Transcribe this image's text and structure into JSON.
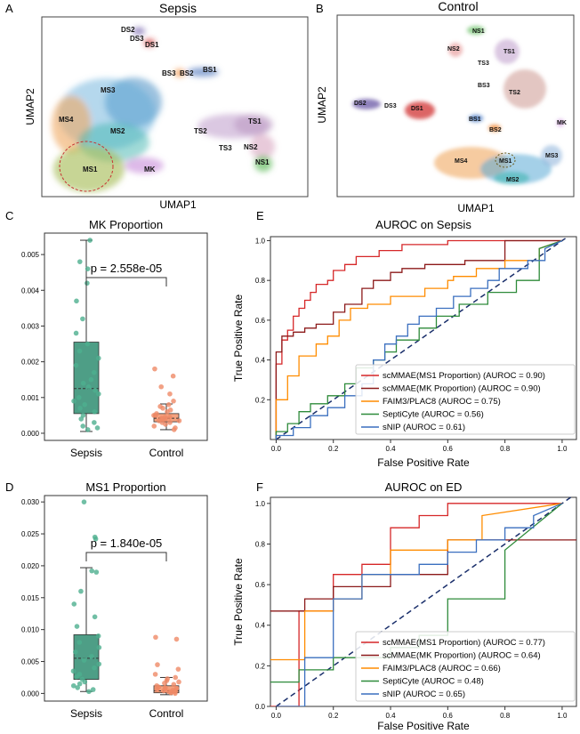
{
  "panels": {
    "A": {
      "letter": "A",
      "title": "Sepsis",
      "xlabel": "UMAP1",
      "ylabel": "UMAP2",
      "clusters": [
        "DS2",
        "DS3",
        "DS1",
        "BS3",
        "BS2",
        "BS1",
        "MS3",
        "MS4",
        "MS2",
        "MS1",
        "MK",
        "TS1",
        "TS2",
        "TS3",
        "NS2",
        "NS1"
      ]
    },
    "B": {
      "letter": "B",
      "title": "Control",
      "xlabel": "UMAP1",
      "ylabel": "UMAP2",
      "clusters": [
        "NS1",
        "NS2",
        "TS1",
        "TS3",
        "BS3",
        "TS2",
        "DS2",
        "DS3",
        "DS1",
        "BS1",
        "BS2",
        "MK",
        "MS4",
        "MS1",
        "MS3",
        "MS2"
      ]
    }
  },
  "colors": {
    "sepsis": "#4daf8e",
    "control": "#ef8a67",
    "box_sepsis": "#4e9e86",
    "box_control": "#f4a27f"
  },
  "chart_data": [
    {
      "id": "C",
      "letter": "C",
      "type": "box",
      "title": "MK Proportion",
      "categories": [
        "Sepsis",
        "Control"
      ],
      "ylim": [
        -0.0002,
        0.0056
      ],
      "yticks": [
        0.0,
        0.001,
        0.002,
        0.003,
        0.004,
        0.005
      ],
      "ytick_labels": [
        "0.000",
        "0.001",
        "0.002",
        "0.003",
        "0.004",
        "0.005"
      ],
      "annotation": "p = 2.558e-05",
      "boxes": [
        {
          "name": "Sepsis",
          "whislo": 5e-05,
          "q1": 0.00055,
          "med": 0.00125,
          "q3": 0.00255,
          "whishi": 0.0054,
          "points": [
            0.0001,
            0.00015,
            0.0002,
            0.0003,
            0.0004,
            0.0005,
            0.0006,
            0.0007,
            0.0008,
            0.0009,
            0.001,
            0.0011,
            0.0012,
            0.0013,
            0.0014,
            0.0015,
            0.0017,
            0.0019,
            0.0021,
            0.0023,
            0.0025,
            0.0028,
            0.0032,
            0.0037,
            0.0042,
            0.0046,
            0.0048,
            0.0054
          ]
        },
        {
          "name": "Control",
          "whislo": 0.0001,
          "q1": 0.00032,
          "med": 0.00042,
          "q3": 0.00055,
          "whishi": 0.00082,
          "points": [
            0.0001,
            0.00015,
            0.0002,
            0.00025,
            0.0003,
            0.0003,
            0.00035,
            0.00035,
            0.0004,
            0.0004,
            0.00042,
            0.00045,
            0.00045,
            0.0005,
            0.0005,
            0.00055,
            0.0006,
            0.00065,
            0.0007,
            0.00075,
            0.0008,
            0.0009,
            0.0011,
            0.0013,
            0.0016,
            0.0018
          ]
        }
      ]
    },
    {
      "id": "D",
      "letter": "D",
      "type": "box",
      "title": "MS1 Proportion",
      "categories": [
        "Sepsis",
        "Control"
      ],
      "ylim": [
        -0.0012,
        0.031
      ],
      "yticks": [
        0.0,
        0.005,
        0.01,
        0.015,
        0.02,
        0.025,
        0.03
      ],
      "ytick_labels": [
        "0.000",
        "0.005",
        "0.010",
        "0.015",
        "0.020",
        "0.025",
        "0.030"
      ],
      "annotation": "p = 1.840e-05",
      "boxes": [
        {
          "name": "Sepsis",
          "whislo": 0.0003,
          "q1": 0.0022,
          "med": 0.0055,
          "q3": 0.0092,
          "whishi": 0.0197,
          "points": [
            0.0003,
            0.0006,
            0.0009,
            0.0012,
            0.0015,
            0.0018,
            0.0022,
            0.0026,
            0.003,
            0.0035,
            0.004,
            0.0046,
            0.0052,
            0.0058,
            0.0065,
            0.0072,
            0.008,
            0.009,
            0.0105,
            0.012,
            0.014,
            0.016,
            0.019,
            0.0192,
            0.0242,
            0.0245,
            0.03
          ]
        },
        {
          "name": "Control",
          "whislo": -0.0002,
          "q1": 0.0001,
          "med": 0.0004,
          "q3": 0.0012,
          "whishi": 0.0025,
          "points": [
            0.0,
            0.0001,
            0.0002,
            0.0002,
            0.0003,
            0.0004,
            0.0005,
            0.0005,
            0.0006,
            0.0007,
            0.0008,
            0.0009,
            0.001,
            0.0012,
            0.0014,
            0.0016,
            0.0018,
            0.002,
            0.0023,
            0.0025,
            0.003,
            0.0038,
            0.0045,
            0.0085,
            0.0088
          ]
        }
      ]
    },
    {
      "id": "E",
      "letter": "E",
      "type": "line",
      "title": "AUROC on Sepsis",
      "xlabel": "False Positive Rate",
      "ylabel": "True Positive Rate",
      "xlim": [
        -0.02,
        1.05
      ],
      "ylim": [
        0.0,
        1.02
      ],
      "xticks": [
        0.0,
        0.2,
        0.4,
        0.6,
        0.8,
        1.0
      ],
      "xtick_labels": [
        "0.0",
        "0.2",
        "0.4",
        "0.6",
        "0.8",
        "1.0"
      ],
      "yticks": [
        0.2,
        0.4,
        0.6,
        0.8,
        1.0
      ],
      "ytick_labels": [
        "0.2",
        "0.4",
        "0.6",
        "0.8",
        "1.0"
      ],
      "series": [
        {
          "name": "scMMAE(MS1 Proportion) (AUROC = 0.90)",
          "color": "#d62728",
          "x": [
            0,
            0,
            0.02,
            0.02,
            0.04,
            0.04,
            0.06,
            0.06,
            0.08,
            0.08,
            0.1,
            0.1,
            0.12,
            0.12,
            0.14,
            0.14,
            0.18,
            0.18,
            0.2,
            0.2,
            0.24,
            0.24,
            0.28,
            0.28,
            0.36,
            0.36,
            0.44,
            0.44,
            0.6,
            0.6,
            1.0
          ],
          "y": [
            0,
            0.38,
            0.38,
            0.5,
            0.5,
            0.55,
            0.55,
            0.62,
            0.62,
            0.66,
            0.66,
            0.7,
            0.7,
            0.74,
            0.74,
            0.78,
            0.78,
            0.8,
            0.8,
            0.85,
            0.85,
            0.88,
            0.88,
            0.92,
            0.92,
            0.95,
            0.95,
            0.98,
            0.98,
            1.0,
            1.0
          ]
        },
        {
          "name": "scMMAE(MK Proportion) (AUROC = 0.90)",
          "color": "#8c1a1a",
          "x": [
            0,
            0,
            0.02,
            0.02,
            0.06,
            0.06,
            0.1,
            0.1,
            0.14,
            0.14,
            0.2,
            0.2,
            0.24,
            0.24,
            0.3,
            0.3,
            0.34,
            0.34,
            0.4,
            0.4,
            0.44,
            0.44,
            0.52,
            0.52,
            0.66,
            0.66,
            0.8,
            0.8,
            1.0
          ],
          "y": [
            0,
            0.44,
            0.44,
            0.52,
            0.52,
            0.54,
            0.54,
            0.56,
            0.56,
            0.58,
            0.58,
            0.64,
            0.64,
            0.68,
            0.68,
            0.76,
            0.76,
            0.8,
            0.8,
            0.84,
            0.84,
            0.86,
            0.86,
            0.88,
            0.88,
            0.9,
            0.9,
            1.0,
            1.0
          ]
        },
        {
          "name": "FAIM3/PLAC8 (AUROC = 0.75)",
          "color": "#ff8c00",
          "x": [
            0,
            0,
            0.04,
            0.04,
            0.08,
            0.08,
            0.14,
            0.14,
            0.18,
            0.18,
            0.22,
            0.22,
            0.26,
            0.26,
            0.32,
            0.32,
            0.4,
            0.4,
            0.52,
            0.52,
            0.6,
            0.6,
            0.62,
            0.62,
            0.7,
            0.7,
            0.8,
            0.8,
            0.92,
            0.92,
            1.0
          ],
          "y": [
            0,
            0.2,
            0.2,
            0.32,
            0.32,
            0.42,
            0.42,
            0.48,
            0.48,
            0.52,
            0.52,
            0.6,
            0.6,
            0.66,
            0.66,
            0.68,
            0.68,
            0.72,
            0.72,
            0.76,
            0.76,
            0.8,
            0.8,
            0.82,
            0.82,
            0.86,
            0.86,
            0.9,
            0.9,
            0.96,
            1.0
          ]
        },
        {
          "name": "SeptiCyte (AUROC = 0.56)",
          "color": "#2e8b3a",
          "x": [
            0,
            0,
            0.04,
            0.04,
            0.08,
            0.08,
            0.12,
            0.12,
            0.18,
            0.18,
            0.24,
            0.24,
            0.28,
            0.28,
            0.34,
            0.34,
            0.38,
            0.38,
            0.42,
            0.42,
            0.5,
            0.5,
            0.56,
            0.56,
            0.64,
            0.64,
            0.74,
            0.74,
            0.84,
            0.84,
            0.92,
            0.92,
            1.0
          ],
          "y": [
            0,
            0.04,
            0.04,
            0.08,
            0.08,
            0.14,
            0.14,
            0.18,
            0.18,
            0.22,
            0.22,
            0.28,
            0.28,
            0.36,
            0.36,
            0.4,
            0.4,
            0.44,
            0.44,
            0.5,
            0.5,
            0.56,
            0.56,
            0.62,
            0.62,
            0.68,
            0.68,
            0.74,
            0.74,
            0.8,
            0.8,
            0.96,
            1.0
          ]
        },
        {
          "name": "sNIP (AUROC = 0.61)",
          "color": "#3a6fbf",
          "x": [
            0,
            0,
            0.06,
            0.06,
            0.12,
            0.12,
            0.18,
            0.18,
            0.24,
            0.24,
            0.3,
            0.3,
            0.34,
            0.34,
            0.38,
            0.38,
            0.42,
            0.42,
            0.46,
            0.46,
            0.5,
            0.5,
            0.56,
            0.56,
            0.62,
            0.62,
            0.68,
            0.68,
            0.74,
            0.74,
            0.78,
            0.78,
            0.88,
            0.88,
            0.94,
            0.94,
            1.0
          ],
          "y": [
            0,
            0.02,
            0.02,
            0.06,
            0.06,
            0.12,
            0.12,
            0.16,
            0.16,
            0.22,
            0.22,
            0.28,
            0.28,
            0.4,
            0.4,
            0.48,
            0.48,
            0.52,
            0.52,
            0.58,
            0.58,
            0.62,
            0.62,
            0.66,
            0.66,
            0.72,
            0.72,
            0.76,
            0.76,
            0.8,
            0.8,
            0.86,
            0.86,
            0.9,
            0.9,
            0.96,
            1.0
          ]
        }
      ]
    },
    {
      "id": "F",
      "letter": "F",
      "type": "line",
      "title": "AUROC on ED",
      "xlabel": "False Positive Rate",
      "ylabel": "True Positive Rate",
      "xlim": [
        -0.02,
        1.05
      ],
      "ylim": [
        0.0,
        1.03
      ],
      "xticks": [
        0.0,
        0.2,
        0.4,
        0.6,
        0.8,
        1.0
      ],
      "xtick_labels": [
        "0.0",
        "0.2",
        "0.4",
        "0.6",
        "0.8",
        "1.0"
      ],
      "yticks": [
        0.0,
        0.2,
        0.4,
        0.6,
        0.8,
        1.0
      ],
      "ytick_labels": [
        "0.0",
        "0.2",
        "0.4",
        "0.6",
        "0.8",
        "1.0"
      ],
      "series": [
        {
          "name": "scMMAE(MS1 Proportion) (AUROC = 0.77)",
          "color": "#d62728",
          "x": [
            -0.02,
            0.08,
            0.08,
            0.2,
            0.2,
            0.3,
            0.3,
            0.4,
            0.4,
            0.5,
            0.5,
            0.6,
            0.6,
            1.0,
            1.0
          ],
          "y": [
            0.0,
            0.0,
            0.47,
            0.47,
            0.65,
            0.65,
            0.7,
            0.7,
            0.88,
            0.88,
            0.94,
            0.94,
            1.0,
            1.0,
            1.0
          ]
        },
        {
          "name": "scMMAE(MK Proportion) (AUROC = 0.64)",
          "color": "#8c1a1a",
          "x": [
            -0.02,
            0.0,
            0.0,
            0.1,
            0.1,
            0.2,
            0.2,
            0.4,
            0.4,
            0.6,
            0.6,
            1.0,
            1.05
          ],
          "y": [
            0.47,
            0.47,
            0.47,
            0.47,
            0.53,
            0.53,
            0.59,
            0.59,
            0.65,
            0.65,
            0.82,
            0.82,
            0.82
          ]
        },
        {
          "name": "FAIM3/PLAC8 (AUROC = 0.66)",
          "color": "#ff8c00",
          "x": [
            -0.02,
            0.1,
            0.1,
            0.2,
            0.2,
            0.3,
            0.3,
            0.4,
            0.4,
            0.6,
            0.6,
            0.72,
            0.72,
            1.0
          ],
          "y": [
            0.23,
            0.23,
            0.47,
            0.47,
            0.53,
            0.53,
            0.65,
            0.65,
            0.77,
            0.77,
            0.82,
            0.82,
            0.94,
            1.0
          ]
        },
        {
          "name": "SeptiCyte (AUROC = 0.48)",
          "color": "#2e8b3a",
          "x": [
            -0.02,
            0.08,
            0.08,
            0.2,
            0.2,
            0.4,
            0.4,
            0.5,
            0.5,
            0.6,
            0.6,
            0.8,
            0.8,
            1.0
          ],
          "y": [
            0.12,
            0.12,
            0.18,
            0.18,
            0.24,
            0.24,
            0.29,
            0.29,
            0.35,
            0.35,
            0.53,
            0.53,
            0.77,
            1.0
          ]
        },
        {
          "name": "sNIP (AUROC = 0.65)",
          "color": "#3a6fbf",
          "x": [
            0.0,
            0.1,
            0.1,
            0.2,
            0.2,
            0.3,
            0.3,
            0.5,
            0.5,
            0.6,
            0.6,
            0.7,
            0.7,
            0.8,
            0.8,
            0.9,
            0.9,
            1.0
          ],
          "y": [
            0.0,
            0.0,
            0.24,
            0.24,
            0.53,
            0.53,
            0.65,
            0.65,
            0.7,
            0.7,
            0.76,
            0.76,
            0.82,
            0.82,
            0.88,
            0.88,
            0.94,
            1.0
          ]
        }
      ]
    }
  ]
}
